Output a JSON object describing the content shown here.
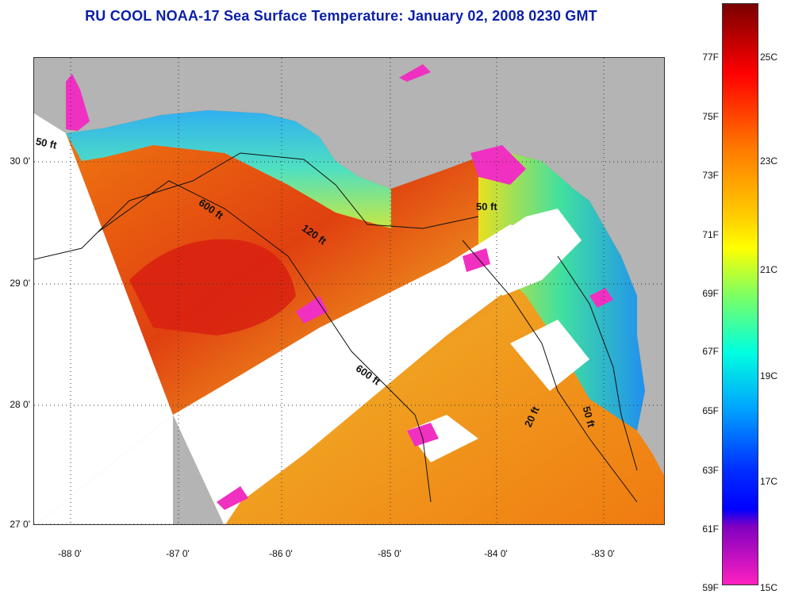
{
  "title": "RU COOL  NOAA-17  Sea Surface Temperature:  January 02, 2008 0230 GMT",
  "latitude_labels": [
    "30 0'",
    "29 0'",
    "28 0'",
    "27 0'"
  ],
  "longitude_labels": [
    "-88 0'",
    "-87 0'",
    "-86 0'",
    "-85 0'",
    "-84 0'",
    "-83 0'"
  ],
  "contour_labels": [
    "50 ft",
    "600 ft",
    "120 ft",
    "50 ft",
    "600 ft",
    "20 ft",
    "50 ft"
  ],
  "colorbar": {
    "fahrenheit_labels": [
      "77F",
      "75F",
      "73F",
      "71F",
      "69F",
      "67F",
      "65F",
      "63F",
      "61F",
      "59F"
    ],
    "celsius_labels": [
      "25C",
      "23C",
      "21C",
      "19C",
      "17C",
      "15C"
    ]
  },
  "colors": {
    "title": "#0b1fa8",
    "land": "#b4b4b4",
    "cloud_mask": "#ffffff"
  }
}
